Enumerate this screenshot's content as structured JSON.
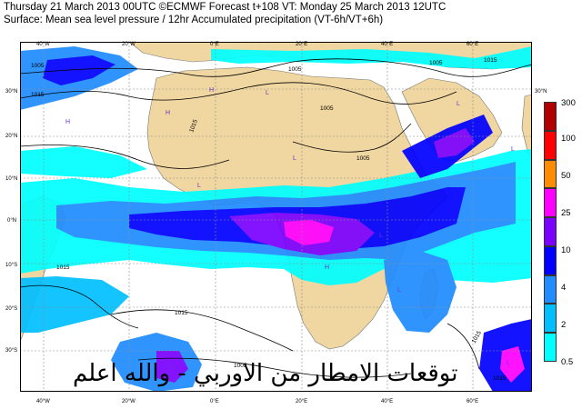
{
  "header": {
    "line1": "Thursday 21 March 2013 00UTC ©ECMWF Forecast t+108 VT: Monday 25 March 2013 12UTC",
    "line2": "Surface: Mean sea level pressure / 12hr Accumulated precipitation (VT-6h/VT+6h)"
  },
  "lon_ticks": [
    "40°W",
    "20°W",
    "0°E",
    "20°E",
    "40°E",
    "60°E"
  ],
  "lat_ticks": [
    "30°N",
    "20°N",
    "10°N",
    "0°N",
    "10°S",
    "20°S",
    "30°S"
  ],
  "isobar_labels": [
    "1005",
    "1015",
    "1005",
    "1015",
    "1005",
    "1015",
    "1015",
    "1015",
    "1015",
    "1005",
    "1015",
    "1005",
    "1005"
  ],
  "pressure_centres": [
    "H",
    "H",
    "H",
    "H",
    "L",
    "L",
    "L",
    "L",
    "L",
    "L",
    "L",
    "L",
    "L"
  ],
  "legend": {
    "levels": [
      "0.5",
      "2",
      "4",
      "10",
      "25",
      "50",
      "100",
      "300"
    ],
    "colors": [
      "#00ffff",
      "#00bfff",
      "#1f8cff",
      "#0000ff",
      "#7a00ff",
      "#ff00ff",
      "#ff8c00",
      "#ff0000",
      "#b00000"
    ]
  },
  "overlay_text": "توقعات الامطار من الاوربي - والله اعلم",
  "colors": {
    "land": "#f0d6a0",
    "sea": "#ffffff",
    "isobar": "#000000"
  }
}
